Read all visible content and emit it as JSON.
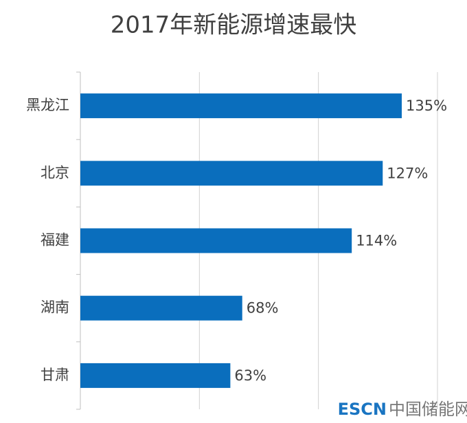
{
  "chart_data": {
    "type": "bar",
    "orientation": "horizontal",
    "title": "2017年新能源增速最快",
    "categories": [
      "黑龙江",
      "北京",
      "福建",
      "湖南",
      "甘肃"
    ],
    "values": [
      135,
      127,
      114,
      68,
      63
    ],
    "value_labels": [
      "135%",
      "127%",
      "114%",
      "68%",
      "63%"
    ],
    "color": "#0a6ebd",
    "xlim": [
      0,
      150
    ],
    "xticks": [
      0,
      50,
      100,
      150
    ],
    "grid": true,
    "watermark": {
      "brand": "ESCN",
      "site": "中国储能网"
    }
  }
}
